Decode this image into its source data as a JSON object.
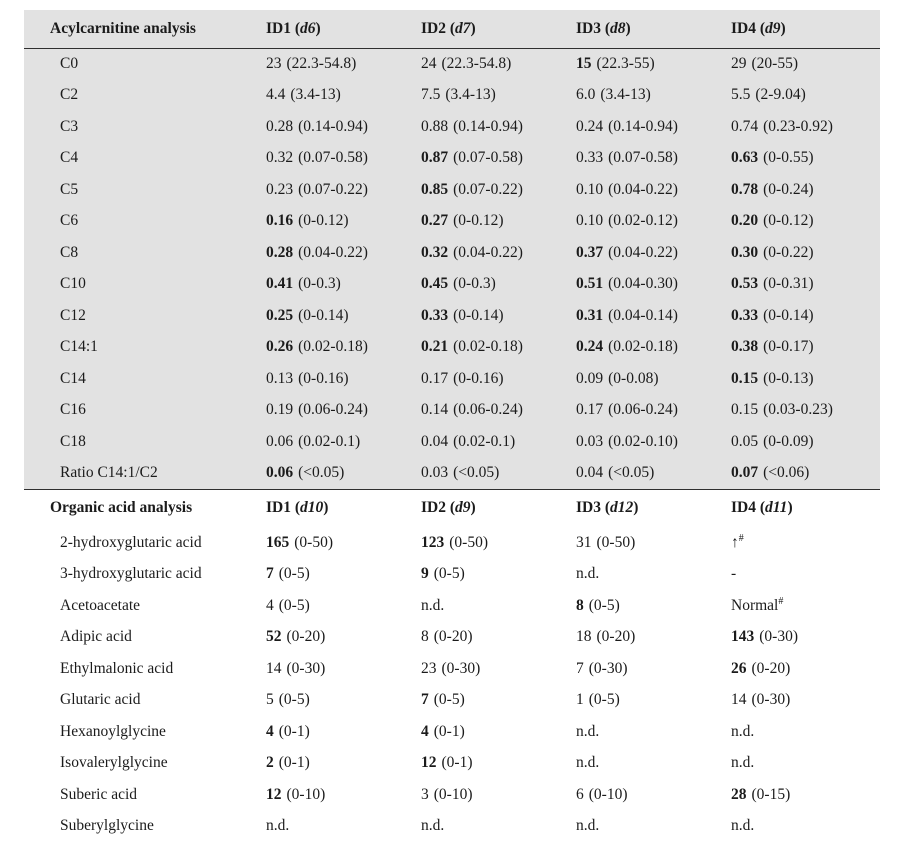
{
  "colors": {
    "background": "#ffffff",
    "section_shade": "#e2e2e2",
    "text": "#1b1b1b",
    "rule": "#2f2f2f"
  },
  "table": {
    "sections": [
      {
        "name": "acylcarnitine",
        "title": "Acylcarnitine analysis",
        "shaded": true,
        "columns": [
          {
            "id": "ID1",
            "sub": "d6"
          },
          {
            "id": "ID2",
            "sub": "d7"
          },
          {
            "id": "ID3",
            "sub": "d8"
          },
          {
            "id": "ID4",
            "sub": "d9"
          }
        ],
        "rows": [
          {
            "analyte": "C0",
            "cells": [
              {
                "value": "23",
                "range": "(22.3-54.8)",
                "bold": false
              },
              {
                "value": "24",
                "range": "(22.3-54.8)",
                "bold": false
              },
              {
                "value": "15",
                "range": "(22.3-55)",
                "bold": true
              },
              {
                "value": "29",
                "range": "(20-55)",
                "bold": false
              }
            ]
          },
          {
            "analyte": "C2",
            "cells": [
              {
                "value": "4.4",
                "range": "(3.4-13)",
                "bold": false
              },
              {
                "value": "7.5",
                "range": "(3.4-13)",
                "bold": false
              },
              {
                "value": "6.0",
                "range": "(3.4-13)",
                "bold": false
              },
              {
                "value": "5.5",
                "range": "(2-9.04)",
                "bold": false
              }
            ]
          },
          {
            "analyte": "C3",
            "cells": [
              {
                "value": "0.28",
                "range": "(0.14-0.94)",
                "bold": false
              },
              {
                "value": "0.88",
                "range": "(0.14-0.94)",
                "bold": false
              },
              {
                "value": "0.24",
                "range": "(0.14-0.94)",
                "bold": false
              },
              {
                "value": "0.74",
                "range": "(0.23-0.92)",
                "bold": false
              }
            ]
          },
          {
            "analyte": "C4",
            "cells": [
              {
                "value": "0.32",
                "range": "(0.07-0.58)",
                "bold": false
              },
              {
                "value": "0.87",
                "range": "(0.07-0.58)",
                "bold": true
              },
              {
                "value": "0.33",
                "range": "(0.07-0.58)",
                "bold": false
              },
              {
                "value": "0.63",
                "range": "(0-0.55)",
                "bold": true
              }
            ]
          },
          {
            "analyte": "C5",
            "cells": [
              {
                "value": "0.23",
                "range": "(0.07-0.22)",
                "bold": false
              },
              {
                "value": "0.85",
                "range": "(0.07-0.22)",
                "bold": true
              },
              {
                "value": "0.10",
                "range": "(0.04-0.22)",
                "bold": false
              },
              {
                "value": "0.78",
                "range": "(0-0.24)",
                "bold": true
              }
            ]
          },
          {
            "analyte": "C6",
            "cells": [
              {
                "value": "0.16",
                "range": "(0-0.12)",
                "bold": true
              },
              {
                "value": "0.27",
                "range": "(0-0.12)",
                "bold": true
              },
              {
                "value": "0.10",
                "range": "(0.02-0.12)",
                "bold": false
              },
              {
                "value": "0.20",
                "range": "(0-0.12)",
                "bold": true
              }
            ]
          },
          {
            "analyte": "C8",
            "cells": [
              {
                "value": "0.28",
                "range": "(0.04-0.22)",
                "bold": true
              },
              {
                "value": "0.32",
                "range": "(0.04-0.22)",
                "bold": true
              },
              {
                "value": "0.37",
                "range": "(0.04-0.22)",
                "bold": true
              },
              {
                "value": "0.30",
                "range": "(0-0.22)",
                "bold": true
              }
            ]
          },
          {
            "analyte": "C10",
            "cells": [
              {
                "value": "0.41",
                "range": "(0-0.3)",
                "bold": true
              },
              {
                "value": "0.45",
                "range": "(0-0.3)",
                "bold": true
              },
              {
                "value": "0.51",
                "range": "(0.04-0.30)",
                "bold": true
              },
              {
                "value": "0.53",
                "range": "(0-0.31)",
                "bold": true
              }
            ]
          },
          {
            "analyte": "C12",
            "cells": [
              {
                "value": "0.25",
                "range": "(0-0.14)",
                "bold": true
              },
              {
                "value": "0.33",
                "range": "(0-0.14)",
                "bold": true
              },
              {
                "value": "0.31",
                "range": "(0.04-0.14)",
                "bold": true
              },
              {
                "value": "0.33",
                "range": "(0-0.14)",
                "bold": true
              }
            ]
          },
          {
            "analyte": "C14:1",
            "cells": [
              {
                "value": "0.26",
                "range": "(0.02-0.18)",
                "bold": true
              },
              {
                "value": "0.21",
                "range": "(0.02-0.18)",
                "bold": true
              },
              {
                "value": "0.24",
                "range": "(0.02-0.18)",
                "bold": true
              },
              {
                "value": "0.38",
                "range": "(0-0.17)",
                "bold": true
              }
            ]
          },
          {
            "analyte": "C14",
            "cells": [
              {
                "value": "0.13",
                "range": "(0-0.16)",
                "bold": false
              },
              {
                "value": "0.17",
                "range": "(0-0.16)",
                "bold": false
              },
              {
                "value": "0.09",
                "range": "(0-0.08)",
                "bold": false
              },
              {
                "value": "0.15",
                "range": "(0-0.13)",
                "bold": true
              }
            ]
          },
          {
            "analyte": "C16",
            "cells": [
              {
                "value": "0.19",
                "range": "(0.06-0.24)",
                "bold": false
              },
              {
                "value": "0.14",
                "range": "(0.06-0.24)",
                "bold": false
              },
              {
                "value": "0.17",
                "range": "(0.06-0.24)",
                "bold": false
              },
              {
                "value": "0.15",
                "range": "(0.03-0.23)",
                "bold": false
              }
            ]
          },
          {
            "analyte": "C18",
            "cells": [
              {
                "value": "0.06",
                "range": "(0.02-0.1)",
                "bold": false
              },
              {
                "value": "0.04",
                "range": "(0.02-0.1)",
                "bold": false
              },
              {
                "value": "0.03",
                "range": "(0.02-0.10)",
                "bold": false
              },
              {
                "value": "0.05",
                "range": "(0-0.09)",
                "bold": false
              }
            ]
          },
          {
            "analyte": "Ratio C14:1/C2",
            "cells": [
              {
                "value": "0.06",
                "range": "(<0.05)",
                "bold": true
              },
              {
                "value": "0.03",
                "range": "(<0.05)",
                "bold": false
              },
              {
                "value": "0.04",
                "range": "(<0.05)",
                "bold": false
              },
              {
                "value": "0.07",
                "range": "(<0.06)",
                "bold": true
              }
            ]
          }
        ]
      },
      {
        "name": "organic-acid",
        "title": "Organic acid analysis",
        "shaded": false,
        "columns": [
          {
            "id": "ID1",
            "sub": "d10"
          },
          {
            "id": "ID2",
            "sub": "d9"
          },
          {
            "id": "ID3",
            "sub": "d12"
          },
          {
            "id": "ID4",
            "sub": "d11"
          }
        ],
        "rows": [
          {
            "analyte": "2-hydroxyglutaric acid",
            "cells": [
              {
                "value": "165",
                "range": "(0-50)",
                "bold": true
              },
              {
                "value": "123",
                "range": "(0-50)",
                "bold": true
              },
              {
                "value": "31",
                "range": "(0-50)",
                "bold": false
              },
              {
                "value": "↑",
                "sup": "#",
                "bold": false
              }
            ]
          },
          {
            "analyte": "3-hydroxyglutaric acid",
            "cells": [
              {
                "value": "7",
                "range": "(0-5)",
                "bold": true
              },
              {
                "value": "9",
                "range": "(0-5)",
                "bold": true
              },
              {
                "value": "n.d.",
                "bold": false
              },
              {
                "value": "-",
                "bold": false
              }
            ]
          },
          {
            "analyte": "Acetoacetate",
            "cells": [
              {
                "value": "4",
                "range": "(0-5)",
                "bold": false
              },
              {
                "value": "n.d.",
                "bold": false
              },
              {
                "value": "8",
                "range": "(0-5)",
                "bold": true
              },
              {
                "value": "Normal",
                "sup": "#",
                "bold": false
              }
            ]
          },
          {
            "analyte": "Adipic acid",
            "cells": [
              {
                "value": "52",
                "range": "(0-20)",
                "bold": true
              },
              {
                "value": "8",
                "range": "(0-20)",
                "bold": false
              },
              {
                "value": "18",
                "range": "(0-20)",
                "bold": false
              },
              {
                "value": "143",
                "range": "(0-30)",
                "bold": true
              }
            ]
          },
          {
            "analyte": "Ethylmalonic acid",
            "cells": [
              {
                "value": "14",
                "range": "(0-30)",
                "bold": false
              },
              {
                "value": "23",
                "range": "(0-30)",
                "bold": false
              },
              {
                "value": "7",
                "range": "(0-30)",
                "bold": false
              },
              {
                "value": "26",
                "range": "(0-20)",
                "bold": true
              }
            ]
          },
          {
            "analyte": "Glutaric acid",
            "cells": [
              {
                "value": "5",
                "range": "(0-5)",
                "bold": false
              },
              {
                "value": "7",
                "range": "(0-5)",
                "bold": true
              },
              {
                "value": "1",
                "range": "(0-5)",
                "bold": false
              },
              {
                "value": "14",
                "range": "(0-30)",
                "bold": false
              }
            ]
          },
          {
            "analyte": "Hexanoylglycine",
            "cells": [
              {
                "value": "4",
                "range": "(0-1)",
                "bold": true
              },
              {
                "value": "4",
                "range": "(0-1)",
                "bold": true
              },
              {
                "value": "n.d.",
                "bold": false
              },
              {
                "value": "n.d.",
                "bold": false
              }
            ]
          },
          {
            "analyte": "Isovalerylglycine",
            "cells": [
              {
                "value": "2",
                "range": "(0-1)",
                "bold": true
              },
              {
                "value": "12",
                "range": "(0-1)",
                "bold": true
              },
              {
                "value": "n.d.",
                "bold": false
              },
              {
                "value": "n.d.",
                "bold": false
              }
            ]
          },
          {
            "analyte": "Suberic acid",
            "cells": [
              {
                "value": "12",
                "range": "(0-10)",
                "bold": true
              },
              {
                "value": "3",
                "range": "(0-10)",
                "bold": false
              },
              {
                "value": "6",
                "range": "(0-10)",
                "bold": false
              },
              {
                "value": "28",
                "range": "(0-15)",
                "bold": true
              }
            ]
          },
          {
            "analyte": "Suberylglycine",
            "cells": [
              {
                "value": "n.d.",
                "bold": false
              },
              {
                "value": "n.d.",
                "bold": false
              },
              {
                "value": "n.d.",
                "bold": false
              },
              {
                "value": "n.d.",
                "bold": false
              }
            ]
          }
        ]
      }
    ]
  }
}
